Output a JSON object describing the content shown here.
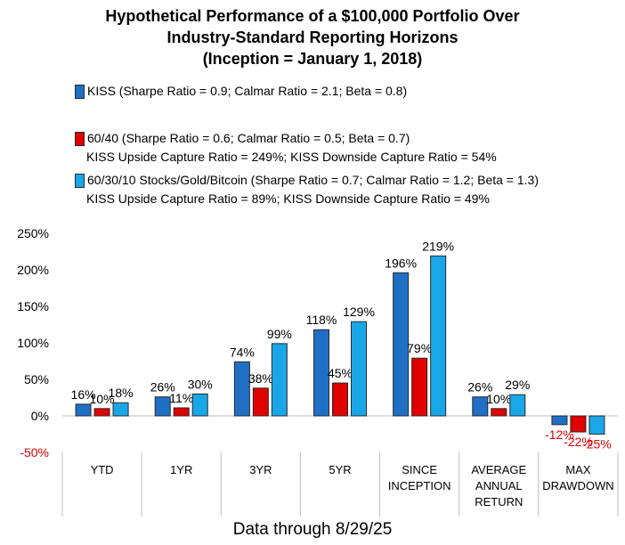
{
  "title_lines": [
    "Hypothetical Performance of a $100,000 Portfolio Over",
    "Industry-Standard Reporting Horizons",
    "(Inception = January 1, 2018)"
  ],
  "legend": [
    {
      "label": "KISS (Sharpe Ratio = 0.9; Calmar Ratio = 2.1; Beta = 0.8)",
      "color": "#1f6fc5",
      "note": ""
    },
    {
      "label": "60/40 (Sharpe Ratio = 0.6; Calmar Ratio = 0.5; Beta = 0.7)",
      "color": "#e00000",
      "note": "KISS Upside Capture Ratio = 249%; KISS Downside Capture Ratio = 54%"
    },
    {
      "label": "60/30/10 Stocks/Gold/Bitcoin (Sharpe Ratio = 0.7; Calmar Ratio = 1.2; Beta = 1.3)",
      "color": "#1aa7e8",
      "note": "KISS Upside Capture Ratio = 89%; KISS Downside Capture Ratio = 49%"
    }
  ],
  "footer": "Data through 8/29/25",
  "chart_data": {
    "type": "bar",
    "categories": [
      "YTD",
      "1YR",
      "3YR",
      "5YR",
      "SINCE\nINCEPTION",
      "AVERAGE\nANNUAL\nRETURN",
      "MAX\nDRAWDOWN"
    ],
    "series": [
      {
        "name": "KISS",
        "color": "#1f6fc5",
        "values": [
          16,
          26,
          74,
          118,
          196,
          26,
          -12
        ],
        "labels": [
          "16%",
          "26%",
          "74%",
          "118%",
          "196%",
          "26%",
          "-12%"
        ]
      },
      {
        "name": "60/40",
        "color": "#e00000",
        "values": [
          10,
          11,
          38,
          45,
          79,
          10,
          -22
        ],
        "labels": [
          "10%",
          "11%",
          "38%",
          "45%",
          "79%",
          "10%",
          "-22%"
        ]
      },
      {
        "name": "60/30/10 Stocks/Gold/Bitcoin",
        "color": "#1aa7e8",
        "values": [
          18,
          30,
          99,
          129,
          219,
          29,
          -25
        ],
        "labels": [
          "18%",
          "30%",
          "99%",
          "129%",
          "219%",
          "29%",
          "-25%"
        ]
      }
    ],
    "y_ticks": [
      "250%",
      "200%",
      "150%",
      "100%",
      "50%",
      "0%",
      "-50%"
    ],
    "y_tick_values": [
      250,
      200,
      150,
      100,
      50,
      0,
      -50
    ],
    "ylim": [
      -50,
      250
    ],
    "unit": "%",
    "grid": false,
    "legend_position": "top"
  }
}
